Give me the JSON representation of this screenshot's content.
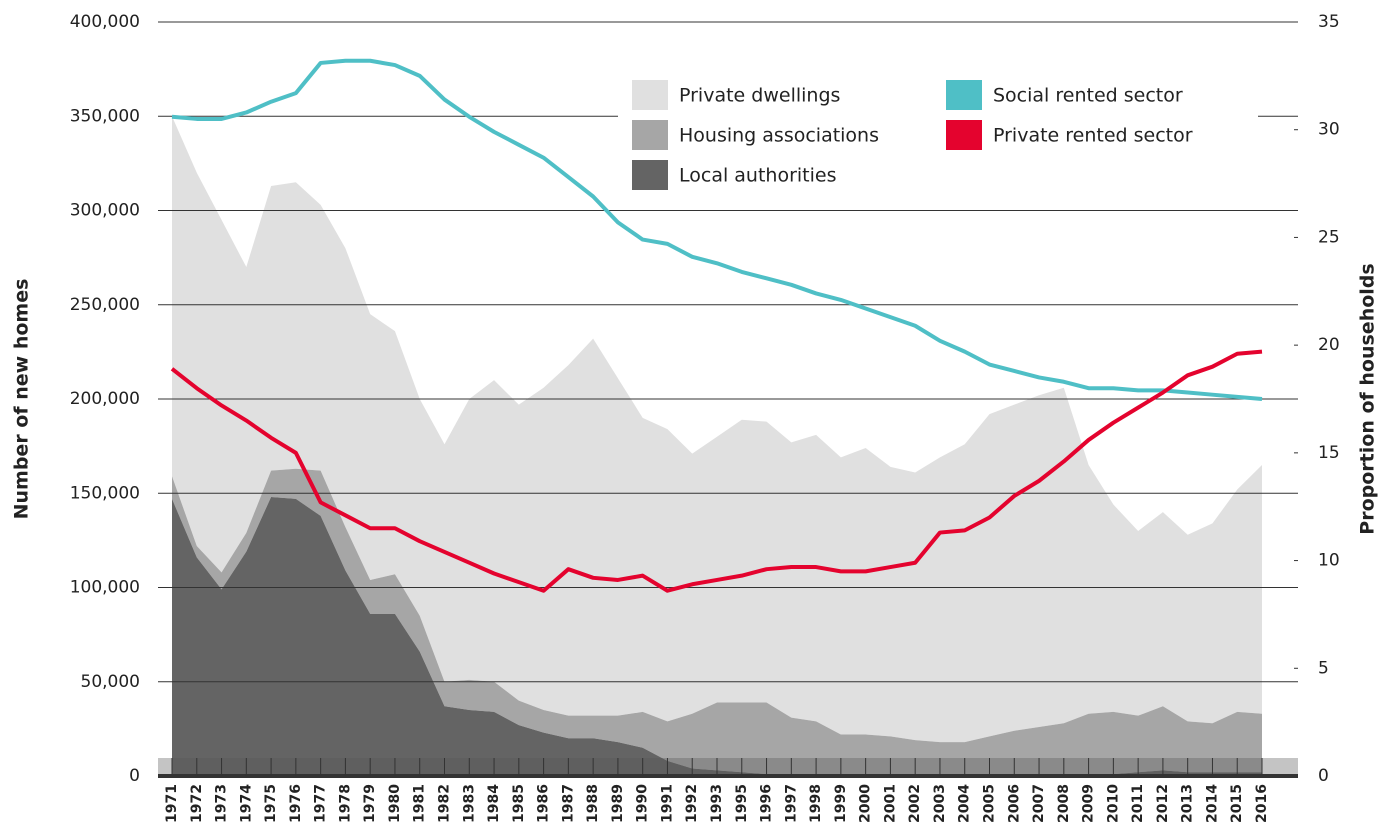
{
  "chart_data": {
    "type": "area",
    "y_label": "Number of new homes",
    "y2_label": "Proportion of households",
    "categories": [
      "1971",
      "1972",
      "1973",
      "1974",
      "1975",
      "1976",
      "1977",
      "1978",
      "1979",
      "1980",
      "1981",
      "1982",
      "1983",
      "1984",
      "1985",
      "1986",
      "1987",
      "1988",
      "1989",
      "1990",
      "1991",
      "1992",
      "1993",
      "1995",
      "1996",
      "1997",
      "1998",
      "1999",
      "2000",
      "2001",
      "2002",
      "2003",
      "2004",
      "2005",
      "2006",
      "2007",
      "2008",
      "2009",
      "2010",
      "2011",
      "2012",
      "2013",
      "2014",
      "2015",
      "2016"
    ],
    "series": [
      {
        "name": "Private dwellings",
        "type": "area",
        "color": "#e0e0e0",
        "values": [
          191000,
          198000,
          187000,
          141000,
          151000,
          152000,
          141000,
          148000,
          141000,
          129000,
          115000,
          126000,
          149000,
          160000,
          157000,
          171000,
          186000,
          200000,
          179000,
          156000,
          155000,
          138000,
          141000,
          150000,
          149000,
          146000,
          152000,
          147000,
          152000,
          143000,
          142000,
          151000,
          158000,
          171000,
          173000,
          176000,
          178000,
          132000,
          110000,
          98000,
          103000,
          99000,
          106000,
          118000,
          132000
        ]
      },
      {
        "name": "Housing associations",
        "type": "area",
        "color": "#a6a6a6",
        "values": [
          12000,
          6000,
          9000,
          10000,
          14000,
          16000,
          24000,
          23000,
          18000,
          21000,
          19000,
          13000,
          16000,
          16000,
          13000,
          12000,
          12000,
          12000,
          14000,
          19000,
          21000,
          29000,
          36000,
          37000,
          38000,
          30000,
          28000,
          22000,
          22000,
          21000,
          19000,
          18000,
          18000,
          21000,
          24000,
          26000,
          27000,
          32000,
          33000,
          30000,
          34000,
          27000,
          26000,
          32000,
          31000
        ]
      },
      {
        "name": "Local authorities",
        "type": "area",
        "color": "#646464",
        "values": [
          147000,
          116000,
          99000,
          119000,
          148000,
          147000,
          138000,
          109000,
          86000,
          86000,
          66000,
          37000,
          35000,
          34000,
          27000,
          23000,
          20000,
          20000,
          18000,
          15000,
          8000,
          4000,
          3000,
          2000,
          1000,
          1000,
          1000,
          0,
          0,
          0,
          0,
          0,
          0,
          0,
          0,
          0,
          1000,
          1000,
          1000,
          2000,
          3000,
          2000,
          2000,
          2000,
          2000
        ]
      },
      {
        "name": "Social rented sector",
        "type": "line",
        "axis": "y2",
        "color": "#4fbfc6",
        "values": [
          30.6,
          30.5,
          30.5,
          30.8,
          31.3,
          31.7,
          33.1,
          33.2,
          33.2,
          33.0,
          32.5,
          31.4,
          30.6,
          29.9,
          29.3,
          28.7,
          27.8,
          26.9,
          25.7,
          24.9,
          24.7,
          24.1,
          23.8,
          23.4,
          23.1,
          22.8,
          22.4,
          22.1,
          21.7,
          21.3,
          20.9,
          20.2,
          19.7,
          19.1,
          18.8,
          18.5,
          18.3,
          18.0,
          18.0,
          17.9,
          17.9,
          17.8,
          17.7,
          17.6,
          17.5
        ]
      },
      {
        "name": "Private rented sector",
        "type": "line",
        "axis": "y2",
        "color": "#e4032e",
        "values": [
          18.9,
          18.0,
          17.2,
          16.5,
          15.7,
          15.0,
          12.7,
          12.1,
          11.5,
          11.5,
          10.9,
          10.4,
          9.9,
          9.4,
          9.0,
          8.6,
          9.6,
          9.2,
          9.1,
          9.3,
          8.6,
          8.9,
          9.1,
          9.3,
          9.6,
          9.7,
          9.7,
          9.5,
          9.5,
          9.7,
          9.9,
          11.3,
          11.4,
          12.0,
          13.0,
          13.7,
          14.6,
          15.6,
          16.4,
          17.1,
          17.8,
          18.6,
          19.0,
          19.6,
          19.7
        ]
      }
    ],
    "stacked": true,
    "ylim": [
      0,
      400000
    ],
    "yticks": [
      0,
      {
        "value": 50000,
        "label": "50,000"
      },
      {
        "value": 100000,
        "label": "100,000"
      },
      {
        "value": 150000,
        "label": "150,000"
      },
      {
        "value": 200000,
        "label": "200,000"
      },
      {
        "value": 250000,
        "label": "250,000"
      },
      {
        "value": 300000,
        "label": "300,000"
      },
      {
        "value": 350000,
        "label": "350,000"
      },
      {
        "value": 400000,
        "label": "400,000"
      }
    ],
    "y2lim": [
      0,
      35
    ],
    "y2ticks": [
      0,
      5,
      10,
      15,
      20,
      25,
      30,
      35
    ],
    "grid": true
  }
}
